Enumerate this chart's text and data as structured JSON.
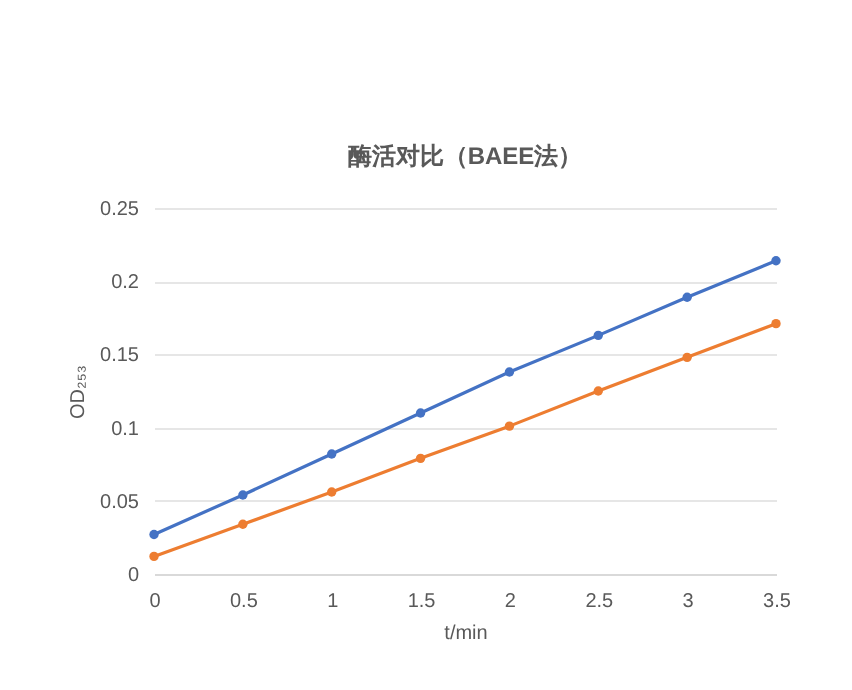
{
  "chart_data": {
    "type": "line",
    "title": "酶活对比（BAEE法）",
    "xlabel": "t/min",
    "ylabel": "OD₂₅₃",
    "x": [
      0,
      0.5,
      1,
      1.5,
      2,
      2.5,
      3,
      3.5
    ],
    "series": [
      {
        "color": "#4472c4",
        "values": [
          0.027,
          0.054,
          0.082,
          0.11,
          0.138,
          0.163,
          0.189,
          0.214
        ]
      },
      {
        "color": "#ed7d31",
        "values": [
          0.012,
          0.034,
          0.056,
          0.079,
          0.101,
          0.125,
          0.148,
          0.171
        ]
      }
    ],
    "xlim": [
      0,
      3.5
    ],
    "xticks": [
      0,
      0.5,
      1,
      1.5,
      2,
      2.5,
      3,
      3.5
    ],
    "ylim": [
      0,
      0.25
    ],
    "yticks": [
      0,
      0.05,
      0.1,
      0.15,
      0.2,
      0.25
    ],
    "grid": "y",
    "legend": false,
    "marker": "circle",
    "line_style": "solid"
  }
}
